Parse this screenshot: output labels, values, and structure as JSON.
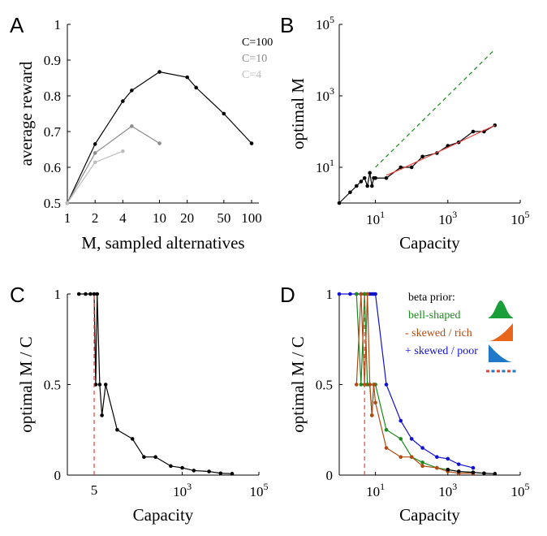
{
  "colors": {
    "black": "#000000",
    "gray_c10": "#8c8c8c",
    "gray_c4": "#bdbdbd",
    "green": "#1a8a1a",
    "brown": "#b04a10",
    "blue": "#1010d0",
    "red": "#e8413a",
    "bell_fill": "#1a9e3a",
    "rich_fill": "#e8661c",
    "poor_fill": "#1f78c8"
  },
  "icons": [
    "bell-shaped-density-icon",
    "skewed-rich-density-icon",
    "skewed-poor-density-icon",
    "dashed-line-icon"
  ],
  "chart_data": [
    {
      "panel": "A",
      "type": "line",
      "xscale": "log",
      "xlabel": "M, sampled alternatives",
      "ylabel": "average reward",
      "xticks": [
        {
          "value": 1,
          "label": "1"
        },
        {
          "value": 2,
          "label": "2"
        },
        {
          "value": 4,
          "label": "4"
        },
        {
          "value": 10,
          "label": "10"
        },
        {
          "value": 20,
          "label": "20"
        },
        {
          "value": 50,
          "label": "50"
        },
        {
          "value": 100,
          "label": "100"
        }
      ],
      "yticks": [
        {
          "value": 0.5,
          "label": "0.5"
        },
        {
          "value": 0.6,
          "label": "0.6"
        },
        {
          "value": 0.7,
          "label": "0.7"
        },
        {
          "value": 0.8,
          "label": "0.8"
        },
        {
          "value": 0.9,
          "label": "0.9"
        },
        {
          "value": 1.0,
          "label": "1"
        }
      ],
      "xlim": [
        1,
        120
      ],
      "ylim": [
        0.5,
        1.0
      ],
      "legend_position": "top-right",
      "series": [
        {
          "name": "C=100",
          "color": "#000000",
          "x": [
            1,
            2,
            4,
            5,
            10,
            20,
            25,
            50,
            100
          ],
          "y": [
            0.5,
            0.665,
            0.785,
            0.815,
            0.867,
            0.852,
            0.823,
            0.75,
            0.667
          ]
        },
        {
          "name": "C=10",
          "color": "#8c8c8c",
          "x": [
            1,
            2,
            5,
            10
          ],
          "y": [
            0.5,
            0.64,
            0.715,
            0.667
          ]
        },
        {
          "name": "C=4",
          "color": "#bdbdbd",
          "x": [
            1,
            2,
            4
          ],
          "y": [
            0.5,
            0.614,
            0.645
          ]
        }
      ]
    },
    {
      "panel": "B",
      "type": "line",
      "xscale": "log",
      "yscale": "log",
      "xlabel": "Capacity",
      "ylabel": "optimal M",
      "xticks": [
        {
          "value": 10,
          "label": "10",
          "exp": "1"
        },
        {
          "value": 1000,
          "label": "10",
          "exp": "3"
        },
        {
          "value": 100000,
          "label": "10",
          "exp": "5"
        }
      ],
      "yticks": [
        {
          "value": 10,
          "label": "10",
          "exp": "1"
        },
        {
          "value": 1000,
          "label": "10",
          "exp": "3"
        },
        {
          "value": 100000,
          "label": "10",
          "exp": "5"
        }
      ],
      "xlim": [
        1,
        100000
      ],
      "ylim": [
        1,
        100000
      ],
      "series": [
        {
          "style": "line",
          "color": "#000000",
          "x": [
            1,
            2,
            3,
            4,
            5,
            6,
            7,
            8,
            9,
            10,
            20,
            50,
            100,
            200,
            500,
            1000,
            2000,
            5000,
            10000,
            20000
          ],
          "y": [
            1,
            2,
            3,
            4,
            5,
            3,
            7,
            3,
            5,
            5,
            5,
            10,
            10,
            20,
            25,
            40,
            50,
            100,
            100,
            150
          ]
        },
        {
          "style": "dashed",
          "color": "#1a8a1a",
          "x": [
            10,
            20000
          ],
          "y": [
            10,
            20000
          ]
        },
        {
          "style": "fit",
          "color": "#e8413a",
          "x": [
            20,
            50,
            100,
            200,
            500,
            1000,
            2000,
            5000,
            10000,
            20000
          ],
          "y": [
            6,
            8.8,
            12.2,
            17,
            26,
            36,
            50,
            78,
            108,
            150
          ]
        }
      ]
    },
    {
      "panel": "C",
      "type": "line",
      "xscale": "log",
      "xlabel": "Capacity",
      "ylabel": "optimal M / C",
      "xticks": [
        {
          "value": 5,
          "label": "5"
        },
        {
          "value": 1000,
          "label": "10",
          "exp": "3"
        },
        {
          "value": 100000,
          "label": "10",
          "exp": "5"
        }
      ],
      "yticks": [
        {
          "value": 0,
          "label": "0"
        },
        {
          "value": 0.5,
          "label": "0.5"
        },
        {
          "value": 1,
          "label": "1"
        }
      ],
      "xlim": [
        1,
        100000
      ],
      "ylim": [
        0,
        1
      ],
      "series": [
        {
          "color": "#000000",
          "x": [
            2,
            3,
            4,
            5,
            5.5,
            6,
            7,
            8,
            10,
            20,
            50,
            100,
            200,
            500,
            1000,
            2000,
            5000,
            10000,
            20000
          ],
          "y": [
            1,
            1,
            1,
            1,
            0.5,
            1,
            0.5,
            0.33,
            0.5,
            0.25,
            0.2,
            0.1,
            0.1,
            0.05,
            0.04,
            0.025,
            0.02,
            0.01,
            0.0075
          ]
        },
        {
          "style": "dashed",
          "color": "#e8413a",
          "x": [
            5,
            5
          ],
          "y": [
            0,
            1
          ]
        }
      ]
    },
    {
      "panel": "D",
      "type": "line",
      "xscale": "log",
      "xlabel": "Capacity",
      "ylabel": "optimal M / C",
      "xticks": [
        {
          "value": 10,
          "label": "10",
          "exp": "1"
        },
        {
          "value": 1000,
          "label": "10",
          "exp": "3"
        },
        {
          "value": 100000,
          "label": "10",
          "exp": "5"
        }
      ],
      "yticks": [
        {
          "value": 0,
          "label": "0"
        },
        {
          "value": 0.5,
          "label": "0.5"
        },
        {
          "value": 1,
          "label": "1"
        }
      ],
      "xlim": [
        1,
        100000
      ],
      "ylim": [
        0,
        1
      ],
      "legend_title": "beta prior:",
      "legend_position": "top-right",
      "series": [
        {
          "name": "+ skewed / poor",
          "color": "#1010d0",
          "x": [
            1,
            2,
            3,
            4,
            5,
            6,
            7,
            8,
            9,
            10,
            20,
            50,
            100,
            200,
            500,
            1000,
            2000,
            5000
          ],
          "y": [
            1,
            1,
            1,
            1,
            1,
            1,
            1,
            1,
            1,
            1,
            0.5,
            0.3,
            0.2,
            0.15,
            0.1,
            0.09,
            0.06,
            0.04
          ]
        },
        {
          "name": "bell-shaped",
          "color": "#1a8a1a",
          "x": [
            3,
            4,
            5,
            6,
            7,
            8,
            9,
            10,
            20,
            50,
            100,
            200,
            500,
            1000,
            2000,
            5000
          ],
          "y": [
            1,
            0.5,
            1,
            0.5,
            0.5,
            0.33,
            0.5,
            0.5,
            0.25,
            0.2,
            0.1,
            0.07,
            0.04,
            0.03,
            0.02,
            0.015
          ]
        },
        {
          "name": "- skewed / rich",
          "color": "#b04a10",
          "x": [
            3,
            4,
            5,
            6,
            7,
            8,
            9,
            10,
            20,
            50,
            100,
            200,
            500,
            1000,
            2000,
            5000
          ],
          "y": [
            0.5,
            1,
            0.5,
            1,
            0.5,
            0.33,
            0.5,
            0.4,
            0.15,
            0.1,
            0.1,
            0.05,
            0.04,
            0.02,
            0.01,
            0.01
          ]
        },
        {
          "color": "#000000",
          "x": [
            1000,
            2000,
            5000,
            10000,
            20000
          ],
          "y": [
            0.03,
            0.02,
            0.015,
            0.01,
            0.0075
          ]
        },
        {
          "style": "dashed",
          "color": "#e8413a",
          "x": [
            5,
            5
          ],
          "y": [
            0,
            1
          ]
        }
      ]
    }
  ]
}
